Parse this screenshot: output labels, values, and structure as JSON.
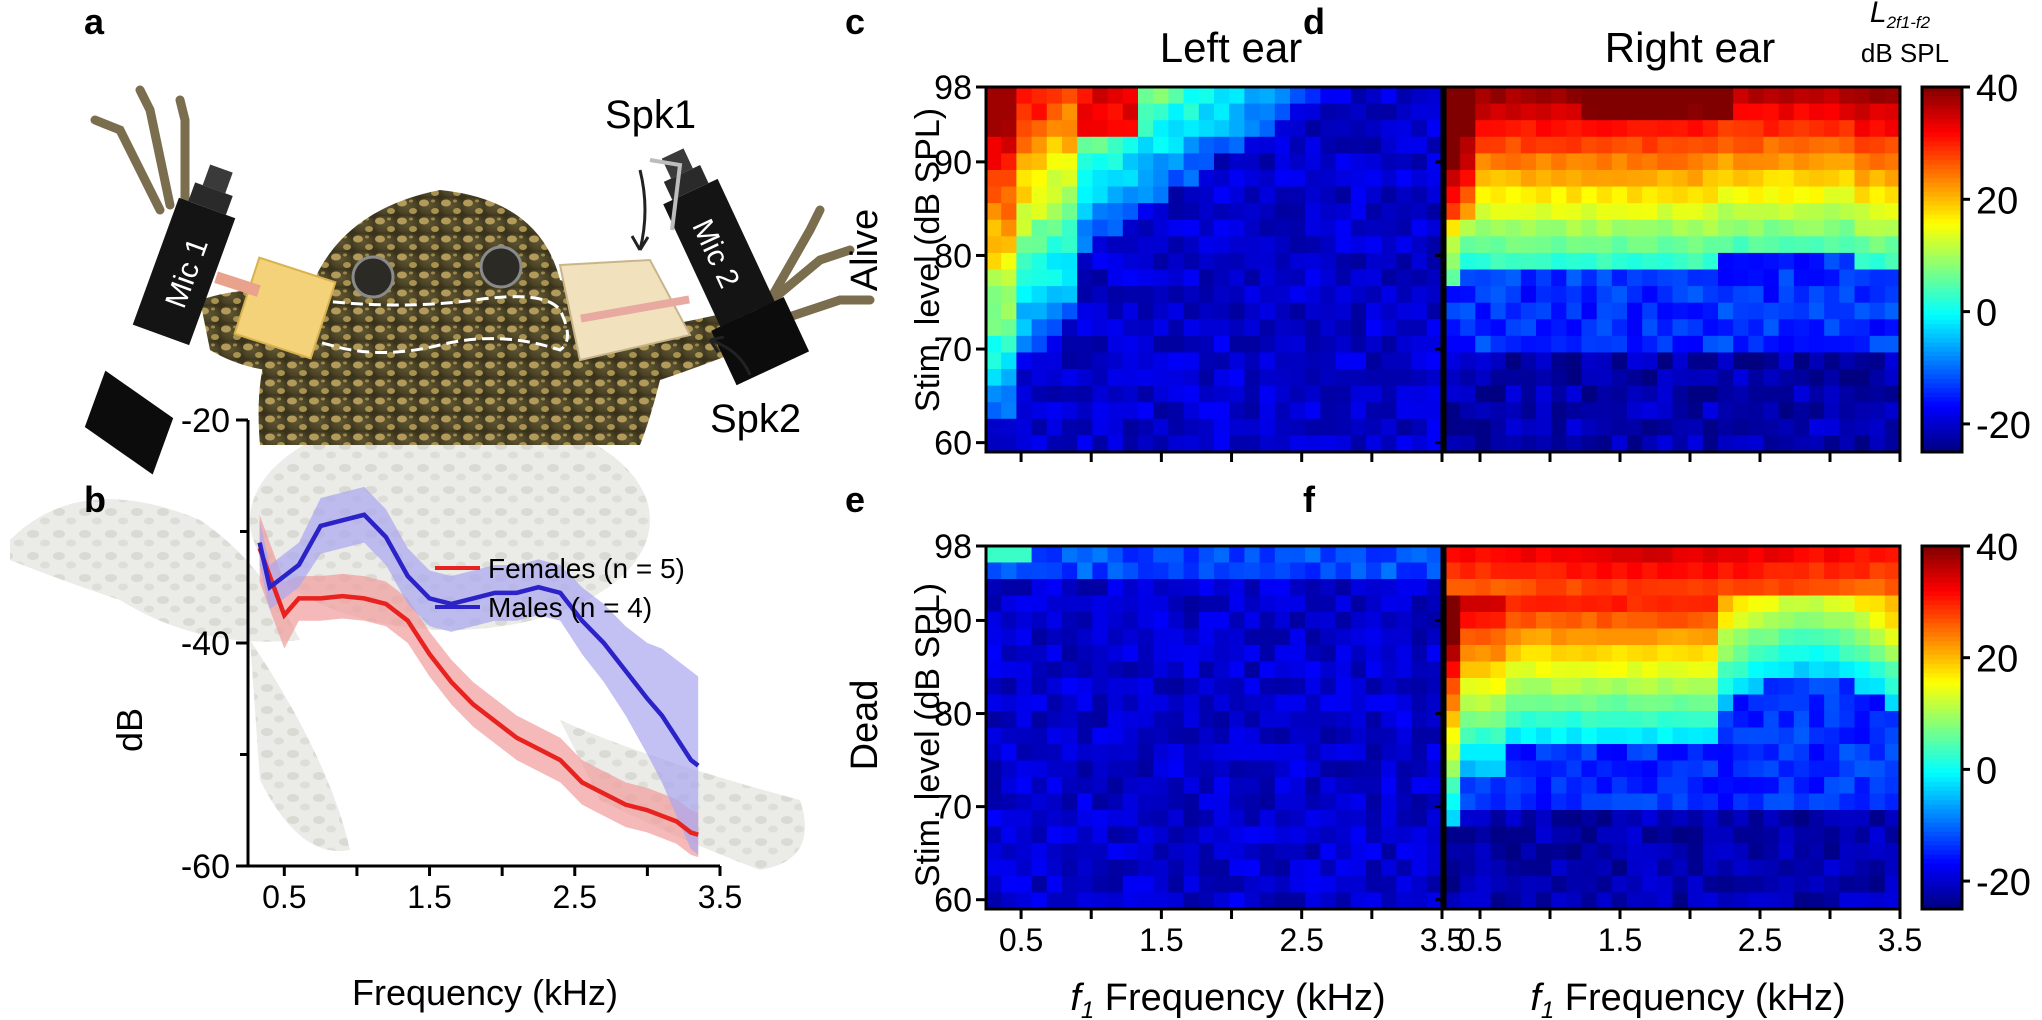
{
  "panel_letters": {
    "a": "a",
    "b": "b",
    "c": "c",
    "d": "d",
    "e": "e",
    "f": "f"
  },
  "photo": {
    "mic1": "Mic 1",
    "mic2": "Mic 2",
    "spk1": "Spk1",
    "spk2": "Spk2"
  },
  "colors": {
    "females": "#e8221f",
    "females_band": "#f19b9b",
    "males": "#2b22c7",
    "males_band": "#a9a6ef"
  },
  "colorbar": {
    "title_main": "L",
    "title_sub": "2f1-f2",
    "unit": "dB SPL",
    "ticks": [
      "40",
      "20",
      "0",
      "-20"
    ],
    "range": [
      -25,
      40
    ]
  },
  "chart_data": [
    {
      "type": "line",
      "panel": "b",
      "xlabel": "Frequency (kHz)",
      "ylabel": "dB",
      "xlim": [
        0.25,
        3.5
      ],
      "ylim": [
        -60,
        -20
      ],
      "xticks": [
        "0.5",
        "1.5",
        "2.5",
        "3.5"
      ],
      "yticks": [
        "-20",
        "-40",
        "-60"
      ],
      "legend": [
        "Females (n = 5)",
        "Males (n = 4)"
      ],
      "legend_placement": "top-right",
      "x": [
        0.33,
        0.4,
        0.5,
        0.6,
        0.75,
        0.9,
        1.05,
        1.2,
        1.35,
        1.5,
        1.65,
        1.8,
        1.95,
        2.1,
        2.25,
        2.4,
        2.55,
        2.7,
        2.85,
        3.0,
        3.1,
        3.2,
        3.3,
        3.35
      ],
      "series": [
        {
          "name": "Females (n = 5)",
          "values": [
            -31.5,
            -34,
            -37.5,
            -36,
            -36,
            -35.8,
            -36,
            -36.5,
            -38,
            -41,
            -43.5,
            -45.5,
            -47,
            -48.5,
            -49.5,
            -50.5,
            -52.5,
            -53.5,
            -54.5,
            -55,
            -55.5,
            -56,
            -57,
            -57.2
          ],
          "band": [
            3,
            3,
            3,
            2,
            2,
            2,
            2,
            2,
            2,
            2,
            2,
            2,
            2,
            2,
            2,
            2,
            2,
            2,
            2,
            2,
            2,
            2,
            2,
            2
          ]
        },
        {
          "name": "Males (n = 4)",
          "values": [
            -31,
            -35,
            -34,
            -33,
            -29.5,
            -29,
            -28.5,
            -30.5,
            -34,
            -36,
            -36.5,
            -36,
            -35.5,
            -35.5,
            -35,
            -35.5,
            -38,
            -40,
            -42.5,
            -45,
            -46.5,
            -48.5,
            -50.5,
            -51
          ],
          "band": [
            2,
            2,
            2,
            2,
            2.5,
            2.5,
            2.5,
            2.5,
            2.5,
            2.5,
            2.5,
            2.5,
            2.5,
            2.5,
            2.5,
            2.5,
            3,
            3.5,
            4,
            5,
            6,
            7,
            8,
            8
          ]
        }
      ]
    },
    {
      "type": "heatmap",
      "panel": "c",
      "title": "Left ear",
      "row_label": "Alive",
      "xlabel": "f1 Frequency (kHz)",
      "ylabel": "Stim. level (dB SPL)",
      "xlim": [
        0.25,
        3.5
      ],
      "ylim": [
        59,
        98
      ],
      "xticks": [
        "0.5",
        "1.5",
        "2.5",
        "3.5"
      ],
      "yticks": [
        "98",
        "90",
        "80",
        "70",
        "60"
      ],
      "grid_cols": 30,
      "grid_rows": 22,
      "profile": "left-alive"
    },
    {
      "type": "heatmap",
      "panel": "d",
      "title": "Right ear",
      "xlabel": "f1 Frequency (kHz)",
      "ylabel": "Stim. level (dB SPL)",
      "xlim": [
        0.25,
        3.5
      ],
      "ylim": [
        59,
        98
      ],
      "xticks": [
        "0.5",
        "1.5",
        "2.5",
        "3.5"
      ],
      "yticks": [
        "98",
        "90",
        "80",
        "70",
        "60"
      ],
      "grid_cols": 30,
      "grid_rows": 22,
      "profile": "right-alive"
    },
    {
      "type": "heatmap",
      "panel": "e",
      "row_label": "Dead",
      "xlabel": "f1 Frequency (kHz)",
      "ylabel": "Stim. level (dB SPL)",
      "xlim": [
        0.25,
        3.5
      ],
      "ylim": [
        59,
        98
      ],
      "xticks": [
        "0.5",
        "1.5",
        "2.5",
        "3.5"
      ],
      "yticks": [
        "98",
        "90",
        "80",
        "70",
        "60"
      ],
      "grid_cols": 30,
      "grid_rows": 22,
      "profile": "left-dead"
    },
    {
      "type": "heatmap",
      "panel": "f",
      "xlabel": "f1 Frequency (kHz)",
      "ylabel": "Stim. level (dB SPL)",
      "xlim": [
        0.25,
        3.5
      ],
      "ylim": [
        59,
        98
      ],
      "xticks": [
        "0.5",
        "1.5",
        "2.5",
        "3.5"
      ],
      "yticks": [
        "98",
        "90",
        "80",
        "70",
        "60"
      ],
      "grid_cols": 30,
      "grid_rows": 22,
      "profile": "right-dead"
    }
  ],
  "axis_text": {
    "b_x": "Frequency (kHz)",
    "b_y": "dB",
    "heat_y": "Stim. level (dB SPL)",
    "heat_x_rest": " Frequency (kHz)",
    "heat_x_f": "f",
    "heat_x_sub": "1"
  }
}
